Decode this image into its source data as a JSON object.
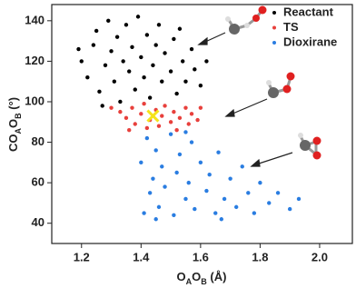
{
  "chart_data": {
    "type": "scatter",
    "xlabel": [
      "O",
      "A",
      "O",
      "B",
      " (Å)"
    ],
    "ylabel": [
      "CO",
      "A",
      "O",
      "B",
      " (°)"
    ],
    "xlim": [
      1.1,
      2.11
    ],
    "ylim": [
      30,
      148
    ],
    "xticks": [
      1.2,
      1.4,
      1.6,
      1.8,
      {
        "value": 2,
        "label": "2.0"
      }
    ],
    "yticks": [
      40,
      60,
      80,
      100,
      120,
      140
    ],
    "legend": "upper right",
    "series": [
      {
        "name": "Reactant",
        "color": "#000000",
        "x": [
          1.2,
          1.22,
          1.24,
          1.25,
          1.26,
          1.28,
          1.29,
          1.3,
          1.31,
          1.32,
          1.33,
          1.34,
          1.35,
          1.36,
          1.37,
          1.38,
          1.39,
          1.4,
          1.41,
          1.42,
          1.43,
          1.44,
          1.45,
          1.46,
          1.47,
          1.48,
          1.5,
          1.51,
          1.52,
          1.54,
          1.55,
          1.57,
          1.58,
          1.6,
          1.62,
          1.19,
          1.27,
          1.53
        ],
        "values": [
          120,
          112,
          128,
          135,
          105,
          118,
          140,
          125,
          110,
          132,
          100,
          120,
          138,
          115,
          127,
          106,
          142,
          122,
          112,
          133,
          102,
          118,
          128,
          138,
          110,
          124,
          115,
          131,
          104,
          120,
          110,
          126,
          116,
          108,
          120,
          126,
          98,
          136
        ]
      },
      {
        "name": "TS",
        "color": "#e8403c",
        "x": [
          1.33,
          1.35,
          1.37,
          1.38,
          1.4,
          1.41,
          1.42,
          1.43,
          1.45,
          1.46,
          1.47,
          1.48,
          1.5,
          1.51,
          1.52,
          1.53,
          1.55,
          1.56,
          1.57,
          1.59,
          1.6,
          1.3,
          1.36
        ],
        "values": [
          95,
          92,
          97,
          89,
          94,
          99,
          87,
          91,
          96,
          88,
          93,
          98,
          90,
          95,
          86,
          92,
          97,
          89,
          94,
          91,
          97,
          97,
          86
        ]
      },
      {
        "name": "Dioxirane",
        "color": "#2a7de1",
        "x": [
          1.4,
          1.41,
          1.42,
          1.43,
          1.44,
          1.45,
          1.46,
          1.47,
          1.48,
          1.5,
          1.51,
          1.52,
          1.53,
          1.55,
          1.56,
          1.57,
          1.58,
          1.6,
          1.62,
          1.63,
          1.65,
          1.66,
          1.68,
          1.7,
          1.72,
          1.74,
          1.76,
          1.78,
          1.8,
          1.83,
          1.86,
          1.9,
          1.93,
          1.45,
          1.55,
          1.67
        ],
        "values": [
          70,
          45,
          82,
          55,
          62,
          76,
          48,
          68,
          58,
          84,
          44,
          65,
          74,
          52,
          60,
          80,
          47,
          70,
          56,
          64,
          45,
          75,
          52,
          62,
          48,
          68,
          55,
          45,
          60,
          50,
          55,
          47,
          52,
          42,
          85,
          42
        ]
      }
    ],
    "highlight": {
      "x": 1.44,
      "y": 93,
      "color": "#f5e31a"
    }
  }
}
